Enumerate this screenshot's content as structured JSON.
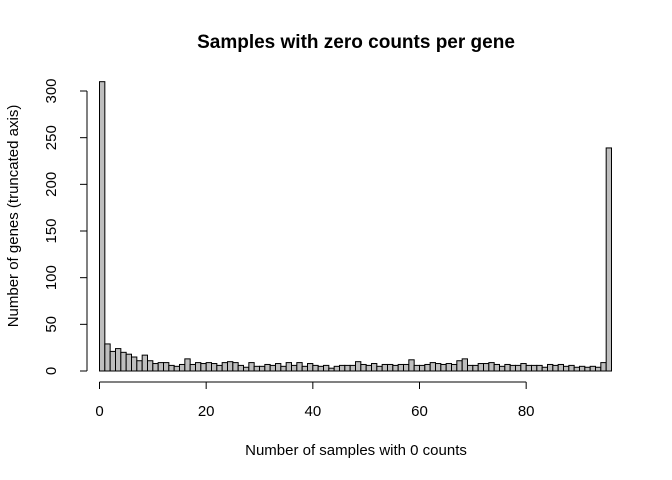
{
  "chart_data": {
    "type": "bar",
    "title": "Samples with zero counts per gene",
    "xlabel": "Number of samples with 0 counts",
    "ylabel": "Number of genes (truncated axis)",
    "xlim": [
      0,
      96
    ],
    "ylim": [
      0,
      310
    ],
    "x_ticks": [
      0,
      20,
      40,
      60,
      80
    ],
    "y_ticks": [
      0,
      50,
      100,
      150,
      200,
      250,
      300
    ],
    "grid": false,
    "bin_start": 0,
    "bin_width": 1,
    "values": [
      310,
      29,
      21,
      24,
      20,
      18,
      15,
      11,
      17,
      11,
      8,
      9,
      9,
      6,
      5,
      7,
      13,
      7,
      9,
      8,
      9,
      8,
      6,
      9,
      10,
      9,
      6,
      4,
      9,
      5,
      5,
      7,
      6,
      8,
      5,
      9,
      6,
      9,
      5,
      8,
      6,
      5,
      6,
      3,
      5,
      6,
      6,
      6,
      10,
      7,
      6,
      8,
      5,
      7,
      7,
      6,
      7,
      7,
      12,
      6,
      6,
      7,
      9,
      8,
      7,
      8,
      7,
      11,
      13,
      6,
      6,
      8,
      8,
      9,
      7,
      5,
      7,
      6,
      6,
      8,
      6,
      6,
      6,
      4,
      7,
      6,
      7,
      5,
      6,
      4,
      5,
      4,
      5,
      4,
      9,
      239
    ],
    "truncated": true
  }
}
